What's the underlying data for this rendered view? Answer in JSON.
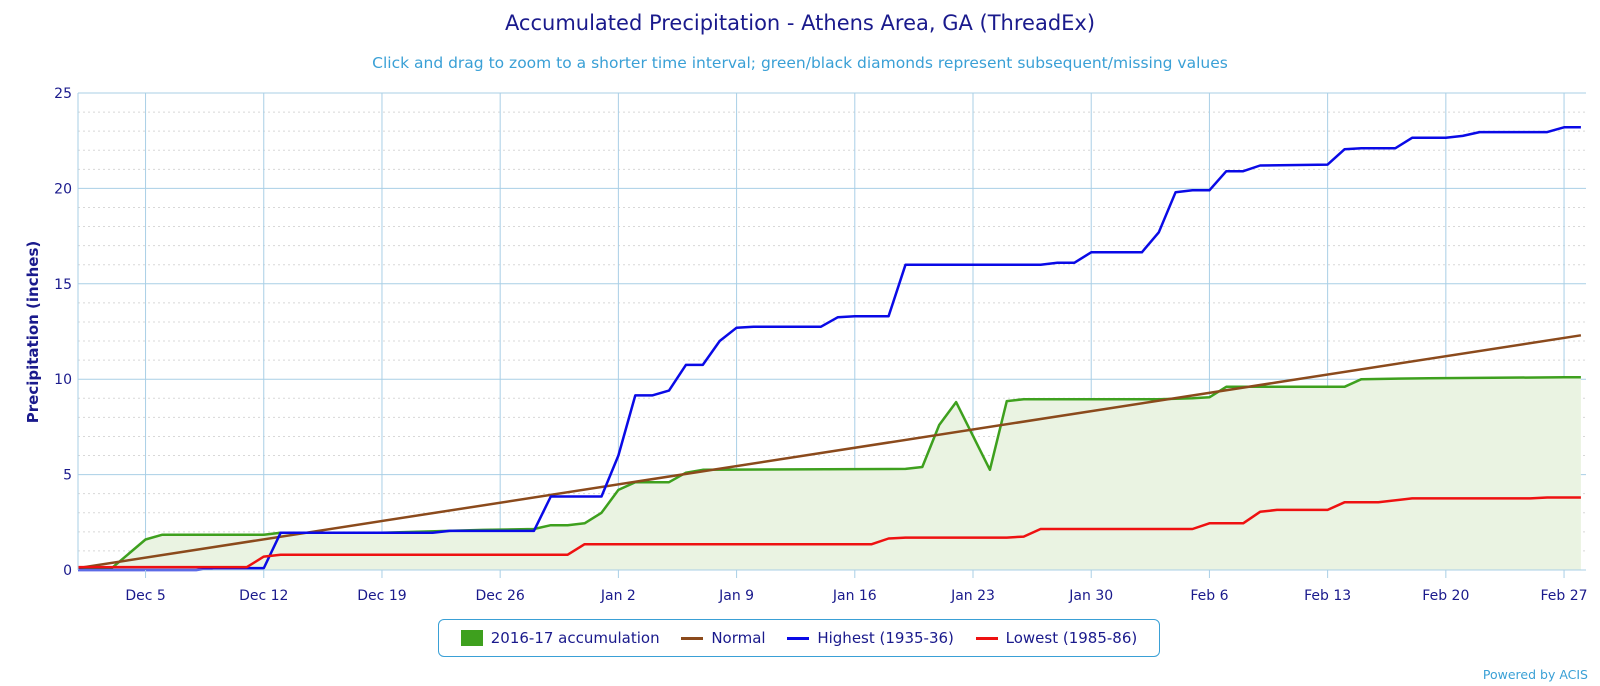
{
  "chart_data": {
    "type": "line",
    "title": "Accumulated Precipitation - Athens Area, GA (ThreadEx)",
    "subtitle": "Click and drag to zoom to a shorter time interval; green/black diamonds represent subsequent/missing values",
    "ylabel": "Precipitation (inches)",
    "ylim": [
      0,
      25
    ],
    "yticks": [
      0,
      5,
      10,
      15,
      20,
      25
    ],
    "x_range": [
      "Dec 1",
      "Feb 28"
    ],
    "xticks": [
      {
        "label": "Dec 5",
        "day": 4
      },
      {
        "label": "Dec 12",
        "day": 11
      },
      {
        "label": "Dec 19",
        "day": 18
      },
      {
        "label": "Dec 26",
        "day": 25
      },
      {
        "label": "Jan 2",
        "day": 32
      },
      {
        "label": "Jan 9",
        "day": 39
      },
      {
        "label": "Jan 16",
        "day": 46
      },
      {
        "label": "Jan 23",
        "day": 53
      },
      {
        "label": "Jan 30",
        "day": 60
      },
      {
        "label": "Feb 6",
        "day": 67
      },
      {
        "label": "Feb 13",
        "day": 74
      },
      {
        "label": "Feb 20",
        "day": 81
      },
      {
        "label": "Feb 27",
        "day": 88
      }
    ],
    "grid": true,
    "legend_position": "bottom-center",
    "series": [
      {
        "name": "2016-17 accumulation",
        "style": "area",
        "color": "#3ea01e",
        "fill": "#eaf3e2",
        "points": [
          [
            0,
            0.1
          ],
          [
            2,
            0.1
          ],
          [
            4,
            1.6
          ],
          [
            5,
            1.85
          ],
          [
            11,
            1.85
          ],
          [
            12,
            1.95
          ],
          [
            18,
            1.95
          ],
          [
            24,
            2.1
          ],
          [
            27,
            2.15
          ],
          [
            28,
            2.35
          ],
          [
            29,
            2.35
          ],
          [
            30,
            2.45
          ],
          [
            31,
            3.0
          ],
          [
            32,
            4.2
          ],
          [
            33,
            4.6
          ],
          [
            35,
            4.6
          ],
          [
            36,
            5.1
          ],
          [
            37,
            5.25
          ],
          [
            54,
            5.25
          ],
          [
            49,
            5.3
          ],
          [
            50,
            5.4
          ],
          [
            51,
            7.6
          ],
          [
            52,
            8.8
          ],
          [
            55,
            8.85
          ],
          [
            56,
            8.95
          ],
          [
            64,
            8.95
          ],
          [
            66,
            9.0
          ],
          [
            67,
            9.05
          ],
          [
            68,
            9.6
          ],
          [
            70,
            9.6
          ],
          [
            75,
            9.6
          ],
          [
            76,
            10.0
          ],
          [
            80,
            10.05
          ],
          [
            88,
            10.1
          ],
          [
            89,
            10.1
          ]
        ]
      },
      {
        "name": "Normal",
        "style": "line",
        "color": "#8b4a1c",
        "points": [
          [
            0,
            0.1
          ],
          [
            89,
            12.3
          ]
        ]
      },
      {
        "name": "Highest (1935-36)",
        "style": "line",
        "color": "#0a0ae6",
        "points": [
          [
            0,
            0
          ],
          [
            7,
            0
          ],
          [
            8,
            0.1
          ],
          [
            11,
            0.1
          ],
          [
            12,
            1.95
          ],
          [
            14,
            1.95
          ],
          [
            17,
            1.95
          ],
          [
            21,
            1.95
          ],
          [
            22,
            2.05
          ],
          [
            27,
            2.05
          ],
          [
            28,
            3.85
          ],
          [
            31,
            3.85
          ],
          [
            32,
            6.0
          ],
          [
            33,
            9.15
          ],
          [
            34,
            9.15
          ],
          [
            35,
            9.4
          ],
          [
            36,
            10.75
          ],
          [
            37,
            10.75
          ],
          [
            38,
            12.0
          ],
          [
            39,
            12.7
          ],
          [
            40,
            12.75
          ],
          [
            44,
            12.75
          ],
          [
            45,
            13.25
          ],
          [
            46,
            13.3
          ],
          [
            48,
            13.3
          ],
          [
            49,
            16.0
          ],
          [
            57,
            16.0
          ],
          [
            58,
            16.1
          ],
          [
            59,
            16.1
          ],
          [
            60,
            16.65
          ],
          [
            63,
            16.65
          ],
          [
            64,
            17.7
          ],
          [
            65,
            19.8
          ],
          [
            66,
            19.9
          ],
          [
            67,
            19.9
          ],
          [
            68,
            20.9
          ],
          [
            69,
            20.9
          ],
          [
            70,
            21.2
          ],
          [
            74,
            21.25
          ],
          [
            75,
            22.05
          ],
          [
            76,
            22.1
          ],
          [
            78,
            22.1
          ],
          [
            79,
            22.65
          ],
          [
            81,
            22.65
          ],
          [
            82,
            22.75
          ],
          [
            83,
            22.95
          ],
          [
            87,
            22.95
          ],
          [
            88,
            23.2
          ],
          [
            89,
            23.2
          ]
        ]
      },
      {
        "name": "Lowest (1985-86)",
        "style": "line",
        "color": "#ee1111",
        "points": [
          [
            0,
            0.15
          ],
          [
            10,
            0.15
          ],
          [
            11,
            0.7
          ],
          [
            12,
            0.8
          ],
          [
            29,
            0.8
          ],
          [
            30,
            1.35
          ],
          [
            47,
            1.35
          ],
          [
            48,
            1.65
          ],
          [
            49,
            1.7
          ],
          [
            55,
            1.7
          ],
          [
            56,
            1.75
          ],
          [
            57,
            2.15
          ],
          [
            66,
            2.15
          ],
          [
            67,
            2.45
          ],
          [
            69,
            2.45
          ],
          [
            70,
            3.05
          ],
          [
            71,
            3.15
          ],
          [
            74,
            3.15
          ],
          [
            75,
            3.55
          ],
          [
            77,
            3.55
          ],
          [
            79,
            3.75
          ],
          [
            85,
            3.75
          ],
          [
            86,
            3.75
          ],
          [
            87,
            3.8
          ],
          [
            89,
            3.8
          ]
        ]
      }
    ]
  },
  "credits": "Powered by ACIS"
}
